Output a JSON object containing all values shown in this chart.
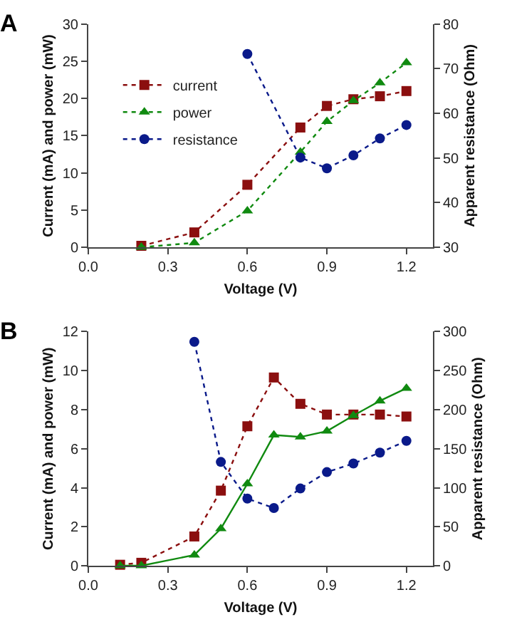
{
  "chart_data": [
    {
      "type": "line",
      "title": "A",
      "xlabel": "Voltage (V)",
      "ylabel": "Current (mA) and power (mW)",
      "y2label": "Apparent resistance (Ohm)",
      "xlim": [
        0,
        1.3
      ],
      "xticks": [
        {
          "value": 0,
          "label": "0.0"
        },
        0.3,
        0.6,
        0.9,
        1.2
      ],
      "ylim": [
        0,
        30
      ],
      "yticks": [
        0,
        5,
        10,
        15,
        20,
        25,
        30
      ],
      "y2lim": [
        30,
        80
      ],
      "y2ticks": [
        30,
        40,
        50,
        60,
        70,
        80
      ],
      "legend": "top left",
      "series": [
        {
          "name": "current",
          "color": "#8b0f0f",
          "marker": "square",
          "line_style": "dotted",
          "x": [
            0.2,
            0.4,
            0.6,
            0.8,
            0.9,
            1.0,
            1.1,
            1.2
          ],
          "values": [
            0.2,
            2,
            8.4,
            16.1,
            19,
            19.9,
            20.3,
            21
          ]
        },
        {
          "name": "power",
          "color": "#108a10",
          "marker": "triangle",
          "line_style": "dotted",
          "x": [
            0.2,
            0.4,
            0.6,
            0.8,
            0.9,
            1.0,
            1.1,
            1.2
          ],
          "values": [
            0,
            0.6,
            4.9,
            12.8,
            16.9,
            19.7,
            22.1,
            24.8
          ]
        },
        {
          "name": "resistance",
          "color": "#0a1a8a",
          "marker": "circle",
          "line_style": "dotted",
          "axis": "y2",
          "x": [
            0.6,
            0.8,
            0.9,
            1.0,
            1.1,
            1.2
          ],
          "values": [
            73.3,
            50.1,
            47.7,
            50.6,
            54.4,
            57.4
          ]
        }
      ]
    },
    {
      "type": "line",
      "title": "B",
      "xlabel": "Voltage (V)",
      "ylabel": "Current (mA) and power (mW)",
      "y2label": "Apparent resistance (Ohm)",
      "xlim": [
        0,
        1.3
      ],
      "xticks": [
        {
          "value": 0,
          "label": "0.0"
        },
        0.3,
        0.6,
        0.9,
        1.2
      ],
      "ylim": [
        0,
        12
      ],
      "yticks": [
        0,
        2,
        4,
        6,
        8,
        10,
        12
      ],
      "y2lim": [
        0,
        300
      ],
      "y2ticks": [
        0,
        50,
        100,
        150,
        200,
        250,
        300
      ],
      "legend": false,
      "series": [
        {
          "color": "#8b0f0f",
          "marker": "square",
          "line_style": "dotted",
          "x": [
            0.12,
            0.2,
            0.4,
            0.5,
            0.6,
            0.7,
            0.8,
            0.9,
            1.0,
            1.1,
            1.2
          ],
          "values": [
            0.05,
            0.15,
            1.5,
            3.85,
            7.15,
            9.65,
            8.3,
            7.75,
            7.75,
            7.75,
            7.65
          ]
        },
        {
          "color": "#108a10",
          "marker": "triangle",
          "line_style": "solid",
          "x": [
            0.12,
            0.2,
            0.4,
            0.5,
            0.6,
            0.7,
            0.8,
            0.9,
            1.0,
            1.1,
            1.2
          ],
          "values": [
            0,
            0,
            0.55,
            1.9,
            4.2,
            6.7,
            6.6,
            6.9,
            7.7,
            8.45,
            9.1
          ]
        },
        {
          "color": "#0a1a8a",
          "marker": "circle",
          "line_style": "dotted",
          "axis": "y2",
          "x": [
            0.4,
            0.5,
            0.6,
            0.7,
            0.8,
            0.9,
            1.0,
            1.1,
            1.2
          ],
          "values": [
            287,
            133,
            86,
            74,
            99,
            120,
            131,
            145,
            160
          ]
        }
      ]
    }
  ]
}
